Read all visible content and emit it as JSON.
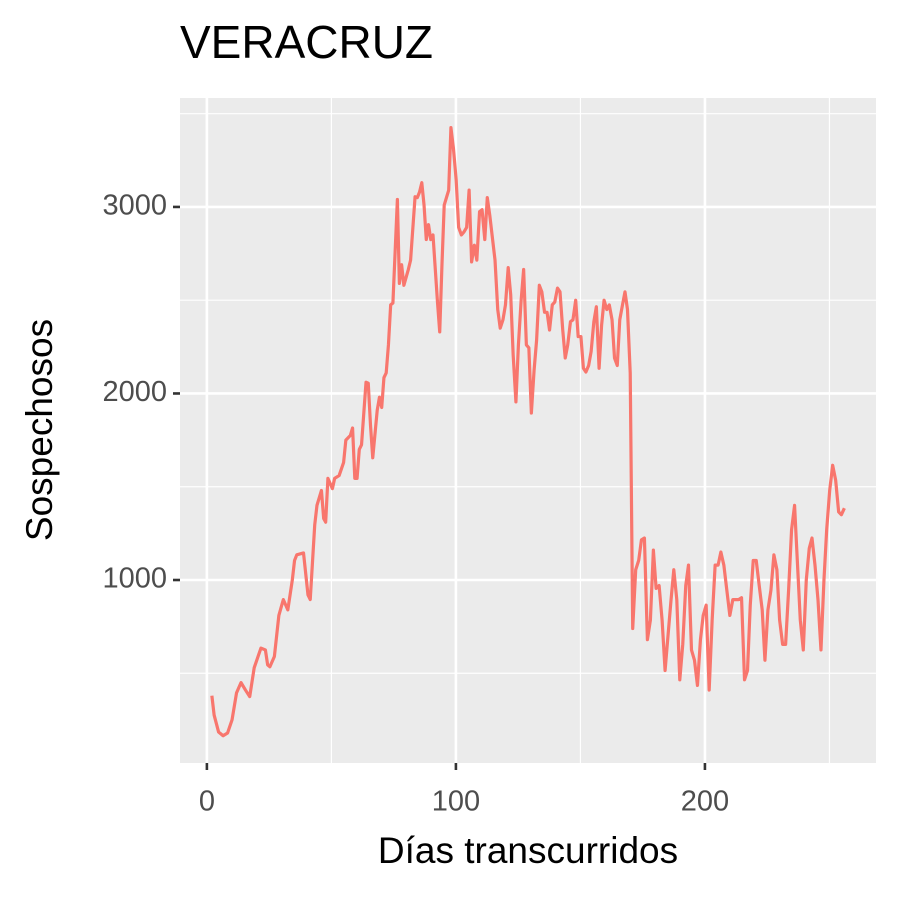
{
  "chart_data": {
    "type": "line",
    "title": "VERACRUZ",
    "x_label": "Días transcurridos",
    "y_label": "Sospechosos",
    "x": [
      2.0,
      2.9,
      4.7,
      6.5,
      8.3,
      10.1,
      11.9,
      13.7,
      15.5,
      17.2,
      19.0,
      20.8,
      21.7,
      23.5,
      24.4,
      25.3,
      27.1,
      28.9,
      30.7,
      32.5,
      34.3,
      35.2,
      36.1,
      38.8,
      40.6,
      41.5,
      43.3,
      44.2,
      46.0,
      46.9,
      47.7,
      48.6,
      50.4,
      51.3,
      53.1,
      54.9,
      55.8,
      57.6,
      58.5,
      59.4,
      60.3,
      61.2,
      62.1,
      63.9,
      64.8,
      65.7,
      66.6,
      68.4,
      69.3,
      70.2,
      71.1,
      72.0,
      72.9,
      73.8,
      74.7,
      76.5,
      77.3,
      78.2,
      79.1,
      80.9,
      81.8,
      83.6,
      84.5,
      85.4,
      86.3,
      87.2,
      88.1,
      89.0,
      89.9,
      90.8,
      92.6,
      93.5,
      94.4,
      95.3,
      97.1,
      98.0,
      99.0,
      100.1,
      101.1,
      102.2,
      103.2,
      104.3,
      105.3,
      106.3,
      107.4,
      108.4,
      109.5,
      110.5,
      111.6,
      112.6,
      113.6,
      115.7,
      116.8,
      117.8,
      118.9,
      119.9,
      121.0,
      122.0,
      123.0,
      124.1,
      125.1,
      126.2,
      127.2,
      128.3,
      129.3,
      130.3,
      131.4,
      132.4,
      133.5,
      134.5,
      135.6,
      136.6,
      137.6,
      138.7,
      139.7,
      140.8,
      141.8,
      142.9,
      143.9,
      144.9,
      146.0,
      147.0,
      148.1,
      149.1,
      150.2,
      151.2,
      152.2,
      153.3,
      154.3,
      155.4,
      156.4,
      157.5,
      158.5,
      159.5,
      160.6,
      161.6,
      162.7,
      163.7,
      164.8,
      165.8,
      166.9,
      167.9,
      168.9,
      170.0,
      171.0,
      172.2,
      173.4,
      174.5,
      175.7,
      176.9,
      178.1,
      179.3,
      180.4,
      181.6,
      182.8,
      184.0,
      185.2,
      186.4,
      187.5,
      188.7,
      189.9,
      191.1,
      192.3,
      193.4,
      194.6,
      195.8,
      197.0,
      198.2,
      199.3,
      200.5,
      201.7,
      202.9,
      204.1,
      205.3,
      206.4,
      207.6,
      208.8,
      210.0,
      211.2,
      212.3,
      213.5,
      214.7,
      215.9,
      217.1,
      218.2,
      219.4,
      220.6,
      221.8,
      223.0,
      224.1,
      225.3,
      226.5,
      227.7,
      228.9,
      230.0,
      231.2,
      232.4,
      233.6,
      234.8,
      236.0,
      237.1,
      238.3,
      239.5,
      240.7,
      241.9,
      243.0,
      244.2,
      245.4,
      246.6,
      247.8,
      248.9,
      250.1,
      251.3,
      252.5,
      253.7,
      254.8,
      256.0
    ],
    "series": [
      {
        "name": "Sospechosos",
        "color": "#f8766d",
        "values": [
          380,
          276,
          185,
          165,
          180,
          250,
          395,
          450,
          410,
          375,
          530,
          600,
          635,
          625,
          545,
          535,
          590,
          810,
          895,
          840,
          1000,
          1105,
          1135,
          1145,
          920,
          895,
          1295,
          1400,
          1480,
          1330,
          1310,
          1545,
          1490,
          1545,
          1560,
          1630,
          1750,
          1775,
          1815,
          1545,
          1545,
          1700,
          1725,
          2060,
          2055,
          1830,
          1655,
          1910,
          1980,
          1925,
          2085,
          2110,
          2260,
          2475,
          2485,
          3040,
          2590,
          2690,
          2580,
          2665,
          2715,
          3055,
          3050,
          3080,
          3130,
          3010,
          2825,
          2905,
          2825,
          2850,
          2490,
          2330,
          2690,
          3010,
          3090,
          3425,
          3315,
          3145,
          2890,
          2850,
          2865,
          2890,
          3090,
          2705,
          2795,
          2715,
          2975,
          2985,
          2825,
          3050,
          2955,
          2715,
          2450,
          2350,
          2395,
          2475,
          2675,
          2530,
          2205,
          1955,
          2260,
          2500,
          2665,
          2260,
          2245,
          1895,
          2125,
          2285,
          2580,
          2545,
          2435,
          2435,
          2340,
          2475,
          2490,
          2565,
          2545,
          2340,
          2190,
          2260,
          2385,
          2395,
          2500,
          2305,
          2305,
          2135,
          2115,
          2150,
          2225,
          2385,
          2465,
          2135,
          2365,
          2500,
          2450,
          2475,
          2395,
          2190,
          2150,
          2395,
          2475,
          2545,
          2450,
          2110,
          740,
          1055,
          1105,
          1215,
          1225,
          680,
          785,
          1160,
          955,
          970,
          785,
          515,
          705,
          895,
          1055,
          895,
          465,
          655,
          970,
          1080,
          625,
          570,
          435,
          680,
          810,
          865,
          410,
          785,
          1080,
          1080,
          1150,
          1080,
          945,
          810,
          895,
          895,
          895,
          905,
          465,
          515,
          865,
          1105,
          1105,
          970,
          840,
          570,
          840,
          945,
          1135,
          1055,
          785,
          655,
          655,
          945,
          1270,
          1400,
          1105,
          785,
          625,
          1000,
          1170,
          1225,
          1080,
          895,
          625,
          1000,
          1270,
          1480,
          1615,
          1535,
          1365,
          1350,
          1385
        ]
      }
    ],
    "xlim": [
      -10.8,
      268.7
    ],
    "ylim": [
      19,
      3584
    ],
    "xticks": [
      0,
      100,
      200
    ],
    "yticks": [
      1000,
      2000,
      3000
    ],
    "minor_xticks": [
      50,
      150,
      250
    ],
    "minor_yticks": [
      500,
      1500,
      2500,
      3500
    ],
    "grid": true
  }
}
